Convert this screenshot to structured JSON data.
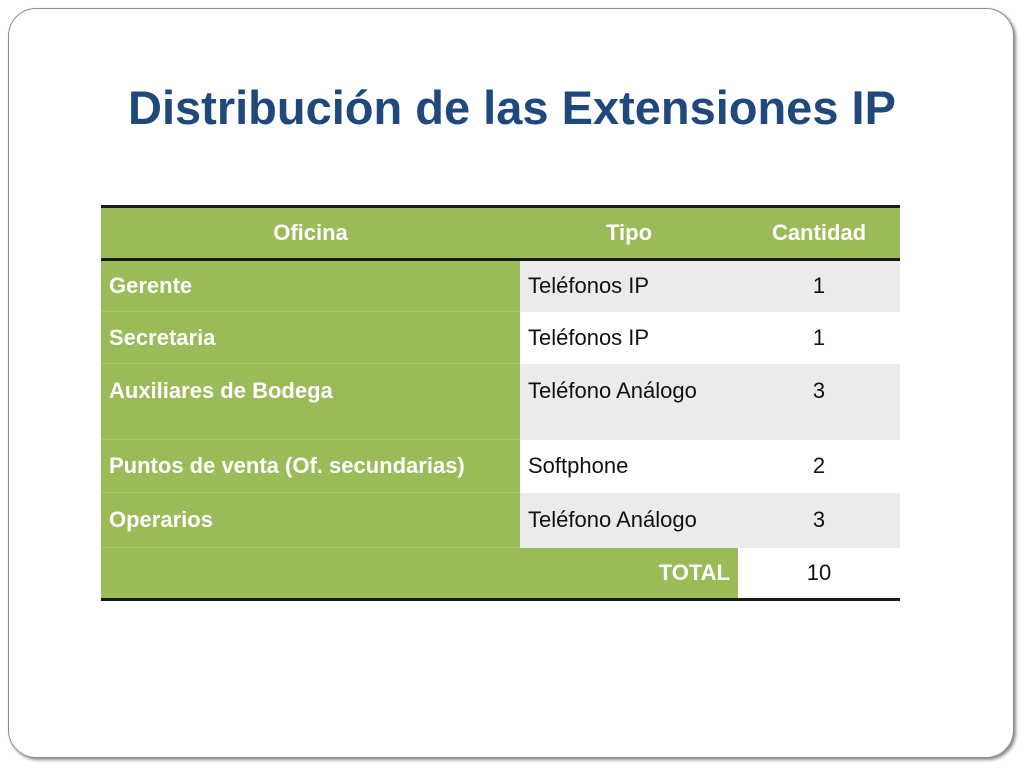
{
  "slide": {
    "title": "Distribución de las Extensiones IP"
  },
  "table": {
    "headers": {
      "oficina": "Oficina",
      "tipo": "Tipo",
      "cantidad": "Cantidad"
    },
    "rows": [
      {
        "oficina": "Gerente",
        "tipo": "Teléfonos IP",
        "cantidad": "1"
      },
      {
        "oficina": "Secretaria",
        "tipo": "Teléfonos IP",
        "cantidad": "1"
      },
      {
        "oficina": "Auxiliares de Bodega",
        "tipo": "Teléfono Análogo",
        "cantidad": "3"
      },
      {
        "oficina": "Puntos de venta (Of. secundarias)",
        "tipo": "Softphone",
        "cantidad": "2"
      },
      {
        "oficina": "Operarios",
        "tipo": "Teléfono Análogo",
        "cantidad": "3"
      }
    ],
    "total_label": "TOTAL",
    "total_value": "10"
  },
  "colors": {
    "title": "#1f497d",
    "header_green": "#9bbb59",
    "row_shade": "#ebebeb",
    "border": "#1a1a1a"
  }
}
